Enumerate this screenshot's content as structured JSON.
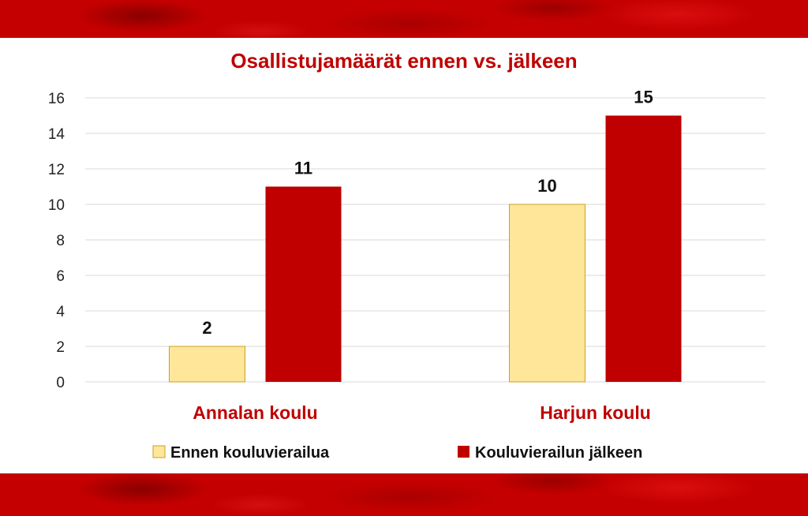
{
  "colors": {
    "band": "#c50000",
    "accent": "#c00000",
    "series_before": "#ffe699",
    "series_before_border": "#c9a227",
    "series_after": "#c00000"
  },
  "chart_data": {
    "type": "bar",
    "title": "Osallistujamäärät ennen vs. jälkeen",
    "categories": [
      "Annalan koulu",
      "Harjun koulu"
    ],
    "series": [
      {
        "name": "Ennen kouluvierailua",
        "values": [
          2,
          10
        ],
        "color": "#ffe699"
      },
      {
        "name": "Kouluvierailun jälkeen",
        "values": [
          11,
          15
        ],
        "color": "#c00000"
      }
    ],
    "ylim": [
      0,
      16
    ],
    "yticks": [
      0,
      2,
      4,
      6,
      8,
      10,
      12,
      14,
      16
    ],
    "xlabel": "",
    "ylabel": "",
    "grid": true,
    "legend": "bottom",
    "data_labels": true
  }
}
